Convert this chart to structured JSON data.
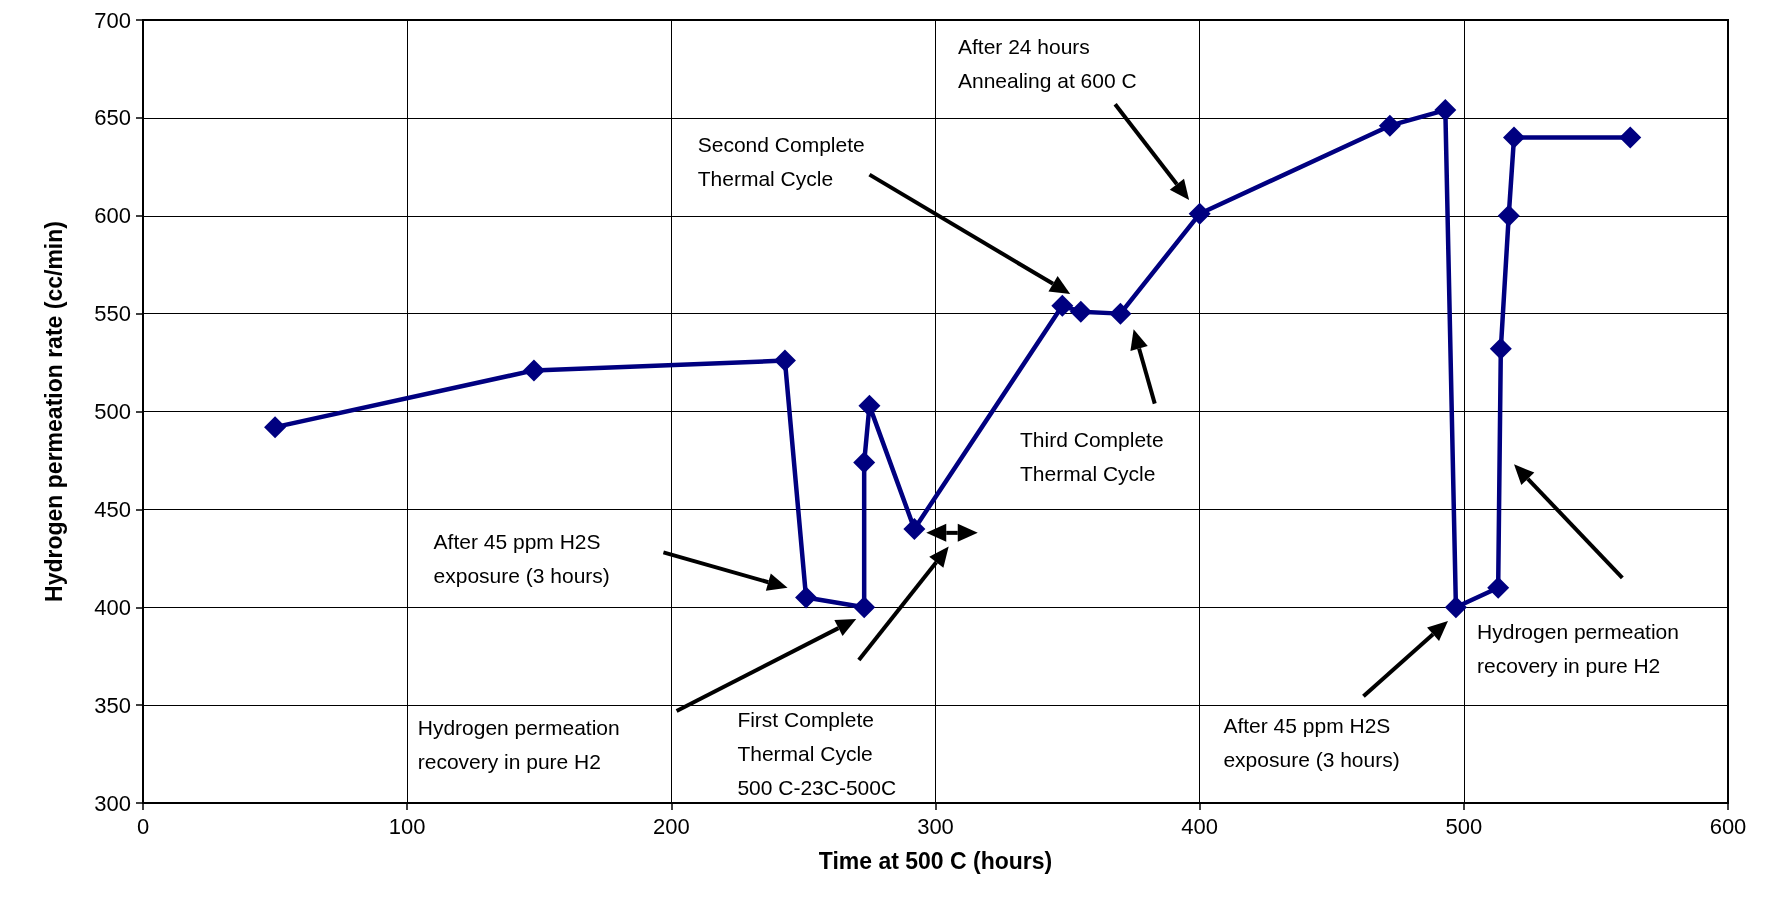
{
  "chart_data": {
    "type": "line",
    "xlabel": "Time at 500 C (hours)",
    "ylabel": "Hydrogen permeation rate (cc/min)",
    "x": [
      50,
      148,
      243,
      251,
      273,
      273,
      275,
      292,
      348,
      355,
      370,
      400,
      472,
      493,
      497,
      513,
      514,
      517,
      519,
      563
    ],
    "series": [
      {
        "color": "#000080",
        "values": [
          492,
          521,
          526,
          405,
          400,
          474,
          503,
          440,
          554,
          551,
          550,
          601,
          646,
          654,
          400,
          410,
          532,
          600,
          640,
          640
        ]
      }
    ],
    "xlim": [
      0,
      600
    ],
    "xticks": [
      0,
      100,
      200,
      300,
      400,
      500,
      600
    ],
    "ylim": [
      300,
      700
    ],
    "yticks": [
      300,
      350,
      400,
      450,
      500,
      550,
      600,
      650,
      700
    ],
    "grid": true,
    "marker": "diamond",
    "line_style": "solid",
    "annotations": [
      "After 45 ppm H2S\nexposure (3 hours)",
      "Hydrogen permeation\nrecovery in pure H2",
      "First Complete\nThermal Cycle\n500 C-23C-500C",
      "Second Complete\nThermal Cycle",
      "After 24 hours\nAnnealing at 600 C",
      "Third Complete\nThermal Cycle",
      "After 45 ppm H2S\nexposure (3 hours)",
      "Hydrogen permeation\nrecovery in pure H2"
    ]
  }
}
